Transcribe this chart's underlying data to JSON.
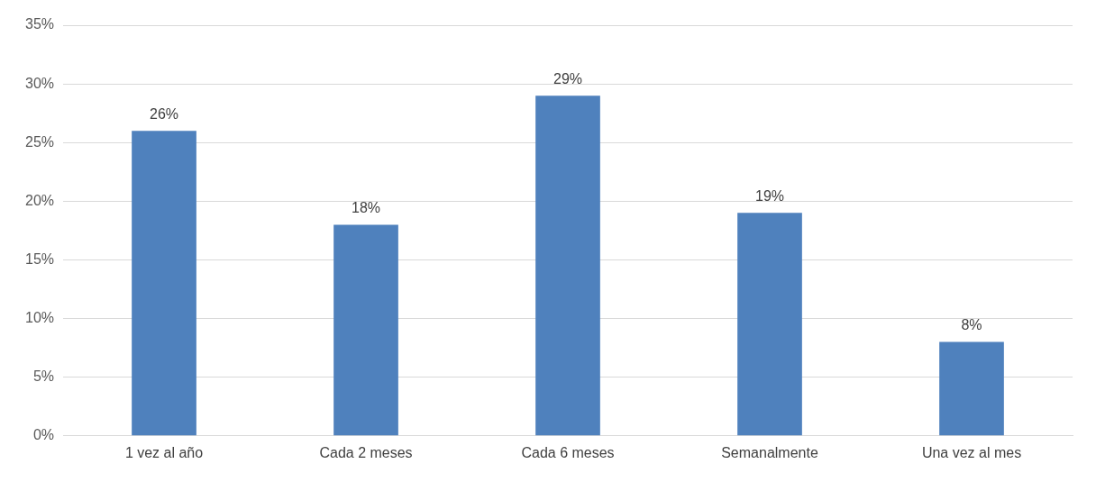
{
  "chart_data": {
    "type": "bar",
    "categories": [
      "1 vez al año",
      "Cada 2 meses",
      "Cada 6 meses",
      "Semanalmente",
      "Una vez al mes"
    ],
    "values": [
      26,
      18,
      29,
      19,
      8
    ],
    "color": "#4f81bd",
    "ylim": [
      0,
      35
    ],
    "yticks": [
      {
        "value": 0,
        "label": "0%"
      },
      {
        "value": 5,
        "label": "5%"
      },
      {
        "value": 10,
        "label": "10%"
      },
      {
        "value": 15,
        "label": "15%"
      },
      {
        "value": 20,
        "label": "20%"
      },
      {
        "value": 25,
        "label": "25%"
      },
      {
        "value": 30,
        "label": "30%"
      },
      {
        "value": 35,
        "label": "35%"
      }
    ],
    "value_labels": [
      "26%",
      "18%",
      "29%",
      "19%",
      "8%"
    ],
    "grid": "y"
  }
}
